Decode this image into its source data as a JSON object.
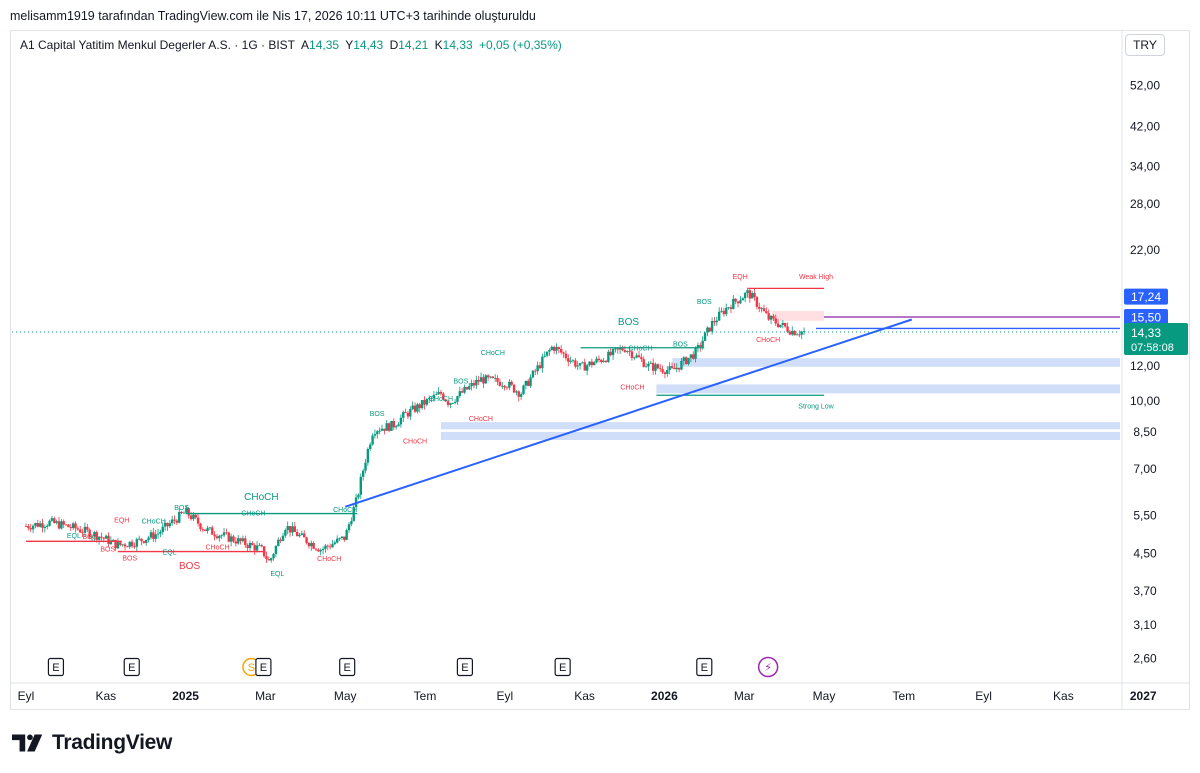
{
  "caption": "melisamm1919 tarafından TradingView.com ile Nis 17, 2026 10:11 UTC+3 tarihinde oluşturuldu",
  "legend": {
    "symbol": "A1 Capital Yatitim Menkul Degerler A.S. · 1G · BIST",
    "o_label": "A",
    "o_value": "14,35",
    "h_label": "Y",
    "h_value": "14,43",
    "l_label": "D",
    "l_value": "14,21",
    "c_label": "K",
    "c_value": "14,33",
    "change": "+0,05 (+0,35%)"
  },
  "currency": "TRY",
  "brand": "TradingView",
  "colors": {
    "up": "#089981",
    "down": "#f23645",
    "trend": "#2962ff",
    "zone": "#c8d8f8",
    "pink_zone": "#ffd9dc"
  },
  "chart_data": {
    "type": "candlestick",
    "scale": "log",
    "ylim": [
      2.35,
      60
    ],
    "y_ticks": [
      {
        "v": 52,
        "label": "52,00"
      },
      {
        "v": 42,
        "label": "42,00"
      },
      {
        "v": 34,
        "label": "34,00"
      },
      {
        "v": 28,
        "label": "28,00"
      },
      {
        "v": 22,
        "label": "22,00"
      },
      {
        "v": 12,
        "label": "12,00"
      },
      {
        "v": 10,
        "label": "10,00"
      },
      {
        "v": 8.5,
        "label": "8,50"
      },
      {
        "v": 7,
        "label": "7,00"
      },
      {
        "v": 5.5,
        "label": "5,50"
      },
      {
        "v": 4.5,
        "label": "4,50"
      },
      {
        "v": 3.7,
        "label": "3,70"
      },
      {
        "v": 3.1,
        "label": "3,10"
      },
      {
        "v": 2.6,
        "label": "2,60"
      }
    ],
    "x_labels": [
      {
        "label": "Eyl",
        "m": 0,
        "bold": false
      },
      {
        "label": "Kas",
        "m": 2,
        "bold": false
      },
      {
        "label": "2025",
        "m": 4,
        "bold": true
      },
      {
        "label": "Mar",
        "m": 6,
        "bold": false
      },
      {
        "label": "May",
        "m": 8,
        "bold": false
      },
      {
        "label": "Tem",
        "m": 10,
        "bold": false
      },
      {
        "label": "Eyl",
        "m": 12,
        "bold": false
      },
      {
        "label": "Kas",
        "m": 14,
        "bold": false
      },
      {
        "label": "2026",
        "m": 16,
        "bold": true
      },
      {
        "label": "Mar",
        "m": 18,
        "bold": false
      },
      {
        "label": "May",
        "m": 20,
        "bold": false
      },
      {
        "label": "Tem",
        "m": 22,
        "bold": false
      },
      {
        "label": "Eyl",
        "m": 24,
        "bold": false
      },
      {
        "label": "Kas",
        "m": 26,
        "bold": false
      },
      {
        "label": "2027",
        "m": 28,
        "bold": true
      }
    ],
    "price_path": [
      [
        0,
        5.2
      ],
      [
        0.6,
        5.3
      ],
      [
        1.2,
        5.15
      ],
      [
        1.8,
        4.95
      ],
      [
        2.3,
        4.7
      ],
      [
        2.8,
        4.8
      ],
      [
        3.3,
        5.0
      ],
      [
        4.0,
        5.6
      ],
      [
        4.5,
        5.1
      ],
      [
        5.2,
        4.85
      ],
      [
        5.9,
        4.6
      ],
      [
        6.1,
        4.3
      ],
      [
        6.5,
        5.2
      ],
      [
        6.9,
        4.9
      ],
      [
        7.4,
        4.6
      ],
      [
        8.0,
        4.9
      ],
      [
        8.3,
        6.0
      ],
      [
        8.7,
        8.6
      ],
      [
        9.2,
        8.8
      ],
      [
        9.5,
        9.3
      ],
      [
        10.4,
        10.4
      ],
      [
        10.6,
        9.9
      ],
      [
        11.4,
        11.2
      ],
      [
        12.0,
        11.0
      ],
      [
        12.4,
        10.4
      ],
      [
        12.8,
        11.8
      ],
      [
        13.2,
        13.3
      ],
      [
        13.9,
        11.9
      ],
      [
        14.5,
        12.5
      ],
      [
        15.0,
        13.2
      ],
      [
        15.6,
        12.0
      ],
      [
        16.2,
        11.7
      ],
      [
        16.8,
        12.9
      ],
      [
        17.2,
        15.0
      ],
      [
        17.6,
        16.4
      ],
      [
        18.1,
        17.6
      ],
      [
        18.6,
        15.4
      ],
      [
        19.2,
        14.4
      ],
      [
        19.5,
        14.33
      ]
    ],
    "last_price": {
      "value": 14.33,
      "label": "14,33",
      "countdown": "07:58:08"
    },
    "price_labels": [
      {
        "value": 17.24,
        "label": "17,24",
        "color": "#2962ff"
      },
      {
        "value": 15.5,
        "label": "15,50",
        "color": "#2962ff"
      },
      {
        "value": 14.33,
        "label": "14,33",
        "color": "#f23645"
      }
    ],
    "trend_line": {
      "from": [
        8.0,
        5.75
      ],
      "to": [
        22.2,
        15.3
      ]
    },
    "horizontal_lines": [
      {
        "value": 15.5,
        "from_m": 20.0,
        "to_m": 27.8,
        "color": "#8e24aa"
      },
      {
        "value": 14.6,
        "from_m": 19.8,
        "to_m": 27.8,
        "color": "#2962ff"
      },
      {
        "value": 18.0,
        "from_m": 18.1,
        "to_m": 20.0,
        "color": "#f23645"
      },
      {
        "value": 10.3,
        "from_m": 15.8,
        "to_m": 20.0,
        "color": "#089981"
      },
      {
        "value": 13.2,
        "from_m": 13.9,
        "to_m": 17.0,
        "color": "#089981"
      },
      {
        "value": 5.55,
        "from_m": 4.0,
        "to_m": 8.3,
        "color": "#089981"
      },
      {
        "value": 4.8,
        "from_m": 0,
        "to_m": 2.4,
        "color": "#f23645"
      },
      {
        "value": 4.55,
        "from_m": 2.3,
        "to_m": 6.0,
        "color": "#f23645"
      }
    ],
    "zones": [
      {
        "low": 11.95,
        "high": 12.5,
        "from_m": 16.2,
        "to_m": 27.8,
        "color": "#c8d8f8"
      },
      {
        "low": 10.4,
        "high": 10.9,
        "from_m": 15.8,
        "to_m": 27.8,
        "color": "#c8d8f8"
      },
      {
        "low": 8.62,
        "high": 8.95,
        "from_m": 10.4,
        "to_m": 27.8,
        "color": "#c8d8f8"
      },
      {
        "low": 8.15,
        "high": 8.5,
        "from_m": 10.4,
        "to_m": 27.8,
        "color": "#c8d8f8"
      },
      {
        "low": 15.2,
        "high": 16.0,
        "from_m": 18.7,
        "to_m": 20.0,
        "color": "#ffd9dc"
      }
    ],
    "annotations": [
      {
        "text": "CHoCH",
        "m": 5.9,
        "v": 5.95,
        "color": "#089981",
        "size": 10
      },
      {
        "text": "BOS",
        "m": 4.1,
        "v": 4.15,
        "color": "#f23645",
        "size": 10
      },
      {
        "text": "BOS",
        "m": 15.1,
        "v": 14.85,
        "color": "#089981",
        "size": 10
      },
      {
        "text": "EQH",
        "m": 2.4,
        "v": 5.3,
        "color": "#f23645",
        "size": 7
      },
      {
        "text": "CHoCH",
        "m": 3.2,
        "v": 5.27,
        "color": "#089981",
        "size": 7
      },
      {
        "text": "BOS",
        "m": 3.9,
        "v": 5.65,
        "color": "#089981",
        "size": 7
      },
      {
        "text": "CHoCH",
        "m": 5.7,
        "v": 5.5,
        "color": "#089981",
        "size": 7
      },
      {
        "text": "CHoCH",
        "m": 8.0,
        "v": 5.6,
        "color": "#089981",
        "size": 7
      },
      {
        "text": "EQL",
        "m": 1.2,
        "v": 4.88,
        "color": "#089981",
        "size": 7
      },
      {
        "text": "BOS",
        "m": 1.6,
        "v": 4.86,
        "color": "#f23645",
        "size": 7
      },
      {
        "text": "BOS",
        "m": 2.05,
        "v": 4.55,
        "color": "#f23645",
        "size": 7
      },
      {
        "text": "BOS",
        "m": 2.6,
        "v": 4.34,
        "color": "#f23645",
        "size": 7
      },
      {
        "text": "EQL",
        "m": 3.6,
        "v": 4.48,
        "color": "#089981",
        "size": 7
      },
      {
        "text": "CHoCH",
        "m": 4.8,
        "v": 4.6,
        "color": "#f23645",
        "size": 7
      },
      {
        "text": "EQL",
        "m": 6.3,
        "v": 4.0,
        "color": "#089981",
        "size": 7
      },
      {
        "text": "CHoCH",
        "m": 7.6,
        "v": 4.33,
        "color": "#f23645",
        "size": 7
      },
      {
        "text": "BOS",
        "m": 8.8,
        "v": 9.25,
        "color": "#089981",
        "size": 7
      },
      {
        "text": "CHoCH",
        "m": 9.75,
        "v": 8.0,
        "color": "#f23645",
        "size": 7
      },
      {
        "text": "CHoCH",
        "m": 10.4,
        "v": 10.0,
        "color": "#089981",
        "size": 7
      },
      {
        "text": "BOS",
        "m": 10.9,
        "v": 10.95,
        "color": "#089981",
        "size": 7
      },
      {
        "text": "CHoCH",
        "m": 11.7,
        "v": 12.7,
        "color": "#089981",
        "size": 7
      },
      {
        "text": "CHoCH",
        "m": 11.4,
        "v": 9.0,
        "color": "#f23645",
        "size": 7
      },
      {
        "text": "CHoCH",
        "m": 15.4,
        "v": 13.0,
        "color": "#089981",
        "size": 7
      },
      {
        "text": "BOS",
        "m": 16.4,
        "v": 13.3,
        "color": "#089981",
        "size": 7
      },
      {
        "text": "CHoCH",
        "m": 15.2,
        "v": 10.6,
        "color": "#f23645",
        "size": 7
      },
      {
        "text": "BOS",
        "m": 17.0,
        "v": 16.6,
        "color": "#089981",
        "size": 7
      },
      {
        "text": "EQH",
        "m": 17.9,
        "v": 18.9,
        "color": "#f23645",
        "size": 7
      },
      {
        "text": "CHoCH",
        "m": 18.6,
        "v": 13.6,
        "color": "#f23645",
        "size": 7
      },
      {
        "text": "Weak High",
        "m": 19.8,
        "v": 18.9,
        "color": "#f23645",
        "size": 7
      },
      {
        "text": "Strong Low",
        "m": 19.8,
        "v": 9.6,
        "color": "#089981",
        "size": 7
      }
    ],
    "event_markers": [
      {
        "m": 0.75,
        "kind": "E",
        "label": "E"
      },
      {
        "m": 2.65,
        "kind": "E",
        "label": "E"
      },
      {
        "m": 5.65,
        "kind": "S",
        "label": "S"
      },
      {
        "m": 5.95,
        "kind": "E",
        "label": "E"
      },
      {
        "m": 8.05,
        "kind": "E",
        "label": "E"
      },
      {
        "m": 11.0,
        "kind": "E",
        "label": "E"
      },
      {
        "m": 13.45,
        "kind": "E",
        "label": "E"
      },
      {
        "m": 17.0,
        "kind": "E",
        "label": "E"
      },
      {
        "m": 18.6,
        "kind": "F",
        "label": "⚡"
      }
    ]
  }
}
